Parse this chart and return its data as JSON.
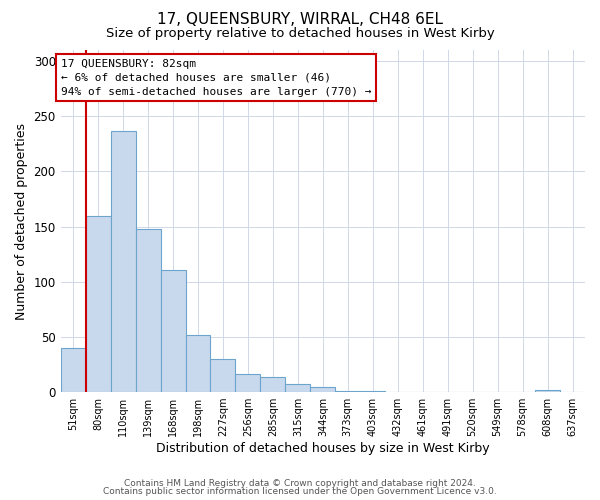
{
  "title": "17, QUEENSBURY, WIRRAL, CH48 6EL",
  "subtitle": "Size of property relative to detached houses in West Kirby",
  "xlabel": "Distribution of detached houses by size in West Kirby",
  "ylabel": "Number of detached properties",
  "bin_labels": [
    "51sqm",
    "80sqm",
    "110sqm",
    "139sqm",
    "168sqm",
    "198sqm",
    "227sqm",
    "256sqm",
    "285sqm",
    "315sqm",
    "344sqm",
    "373sqm",
    "403sqm",
    "432sqm",
    "461sqm",
    "491sqm",
    "520sqm",
    "549sqm",
    "578sqm",
    "608sqm",
    "637sqm"
  ],
  "bar_values": [
    40,
    160,
    237,
    148,
    111,
    52,
    30,
    16,
    14,
    7,
    5,
    1,
    1,
    0,
    0,
    0,
    0,
    0,
    0,
    2,
    0
  ],
  "bar_color": "#c9d9ed",
  "bar_edge_color": "#6da4cc",
  "vline_x": 1,
  "vline_color": "#cc0000",
  "annotation_lines": [
    "17 QUEENSBURY: 82sqm",
    "← 6% of detached houses are smaller (46)",
    "94% of semi-detached houses are larger (770) →"
  ],
  "annotation_box_color": "#cc0000",
  "ylim": [
    0,
    310
  ],
  "yticks": [
    0,
    50,
    100,
    150,
    200,
    250,
    300
  ],
  "footer_line1": "Contains HM Land Registry data © Crown copyright and database right 2024.",
  "footer_line2": "Contains public sector information licensed under the Open Government Licence v3.0.",
  "background_color": "#ffffff",
  "grid_color": "#d0d8e8"
}
